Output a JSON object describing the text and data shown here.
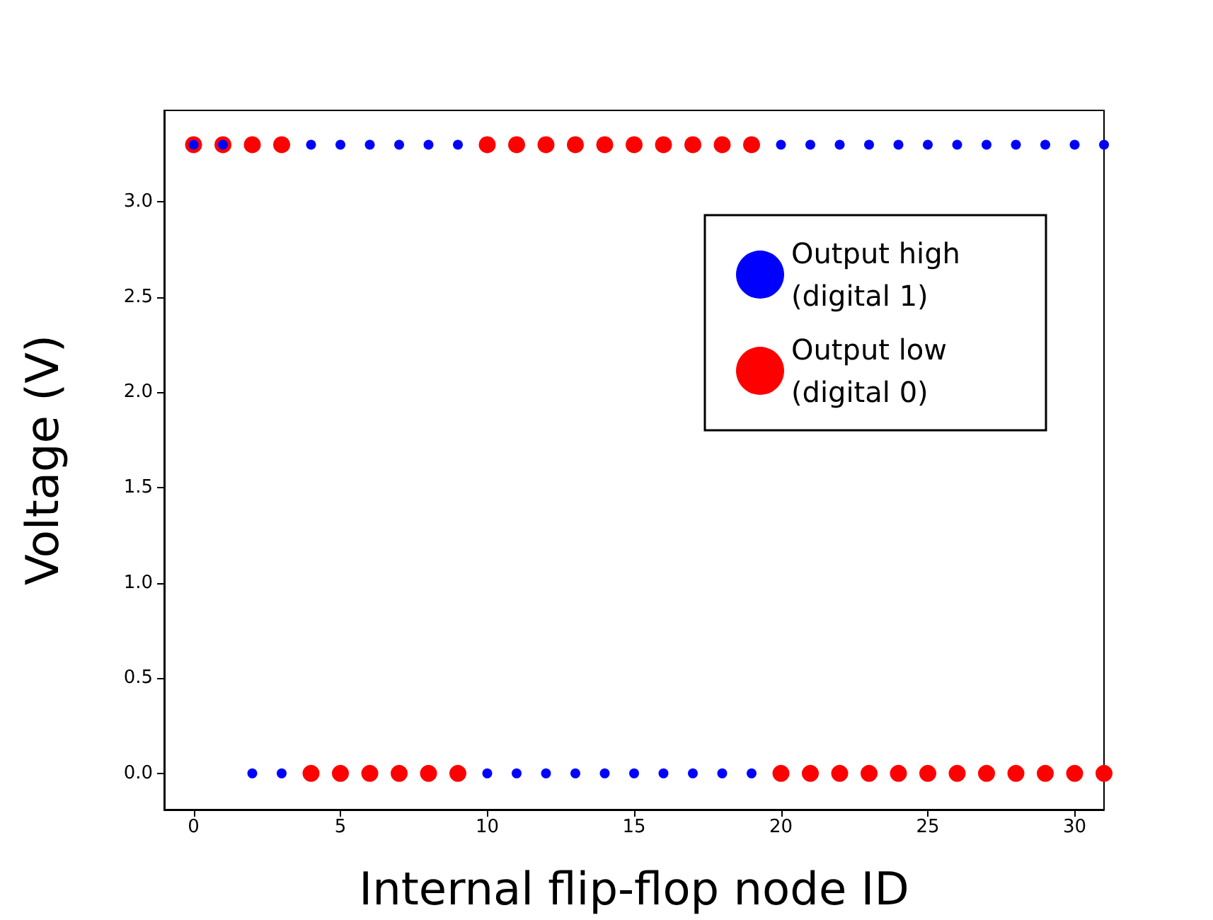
{
  "chart_data": {
    "type": "scatter",
    "xlabel": "Internal flip-flop node ID",
    "ylabel": "Voltage (V)",
    "x": [
      0,
      1,
      2,
      3,
      4,
      5,
      6,
      7,
      8,
      9,
      10,
      11,
      12,
      13,
      14,
      15,
      16,
      17,
      18,
      19,
      20,
      21,
      22,
      23,
      24,
      25,
      26,
      27,
      28,
      29,
      30,
      31
    ],
    "series": [
      {
        "name": "Output high (digital 1)",
        "color": "#0000ff",
        "values": [
          3.3,
          3.3,
          0,
          0,
          3.3,
          3.3,
          3.3,
          3.3,
          3.3,
          3.3,
          0,
          0,
          0,
          0,
          0,
          0,
          0,
          0,
          0,
          0,
          3.3,
          3.3,
          3.3,
          3.3,
          3.3,
          3.3,
          3.3,
          3.3,
          3.3,
          3.3,
          3.3,
          3.3
        ]
      },
      {
        "name": "Output low (digital 0)",
        "color": "#ff0000",
        "values": [
          3.3,
          3.3,
          3.3,
          3.3,
          0,
          0,
          0,
          0,
          0,
          0,
          3.3,
          3.3,
          3.3,
          3.3,
          3.3,
          3.3,
          3.3,
          3.3,
          3.3,
          3.3,
          0,
          0,
          0,
          0,
          0,
          0,
          0,
          0,
          0,
          0,
          0,
          0
        ]
      }
    ],
    "xlim": [
      -1,
      31
    ],
    "xticks": [
      0,
      5,
      10,
      15,
      20,
      25,
      30
    ],
    "ylim": [
      -0.19,
      3.48
    ],
    "yticks": [
      {
        "value": 0,
        "label": "0.0"
      },
      0.5,
      {
        "value": 1,
        "label": "1.0"
      },
      1.5,
      {
        "value": 2,
        "label": "2.0"
      },
      2.5,
      {
        "value": 3,
        "label": "3.0"
      }
    ],
    "grid": false,
    "legend": "top right",
    "marker": "circle"
  }
}
